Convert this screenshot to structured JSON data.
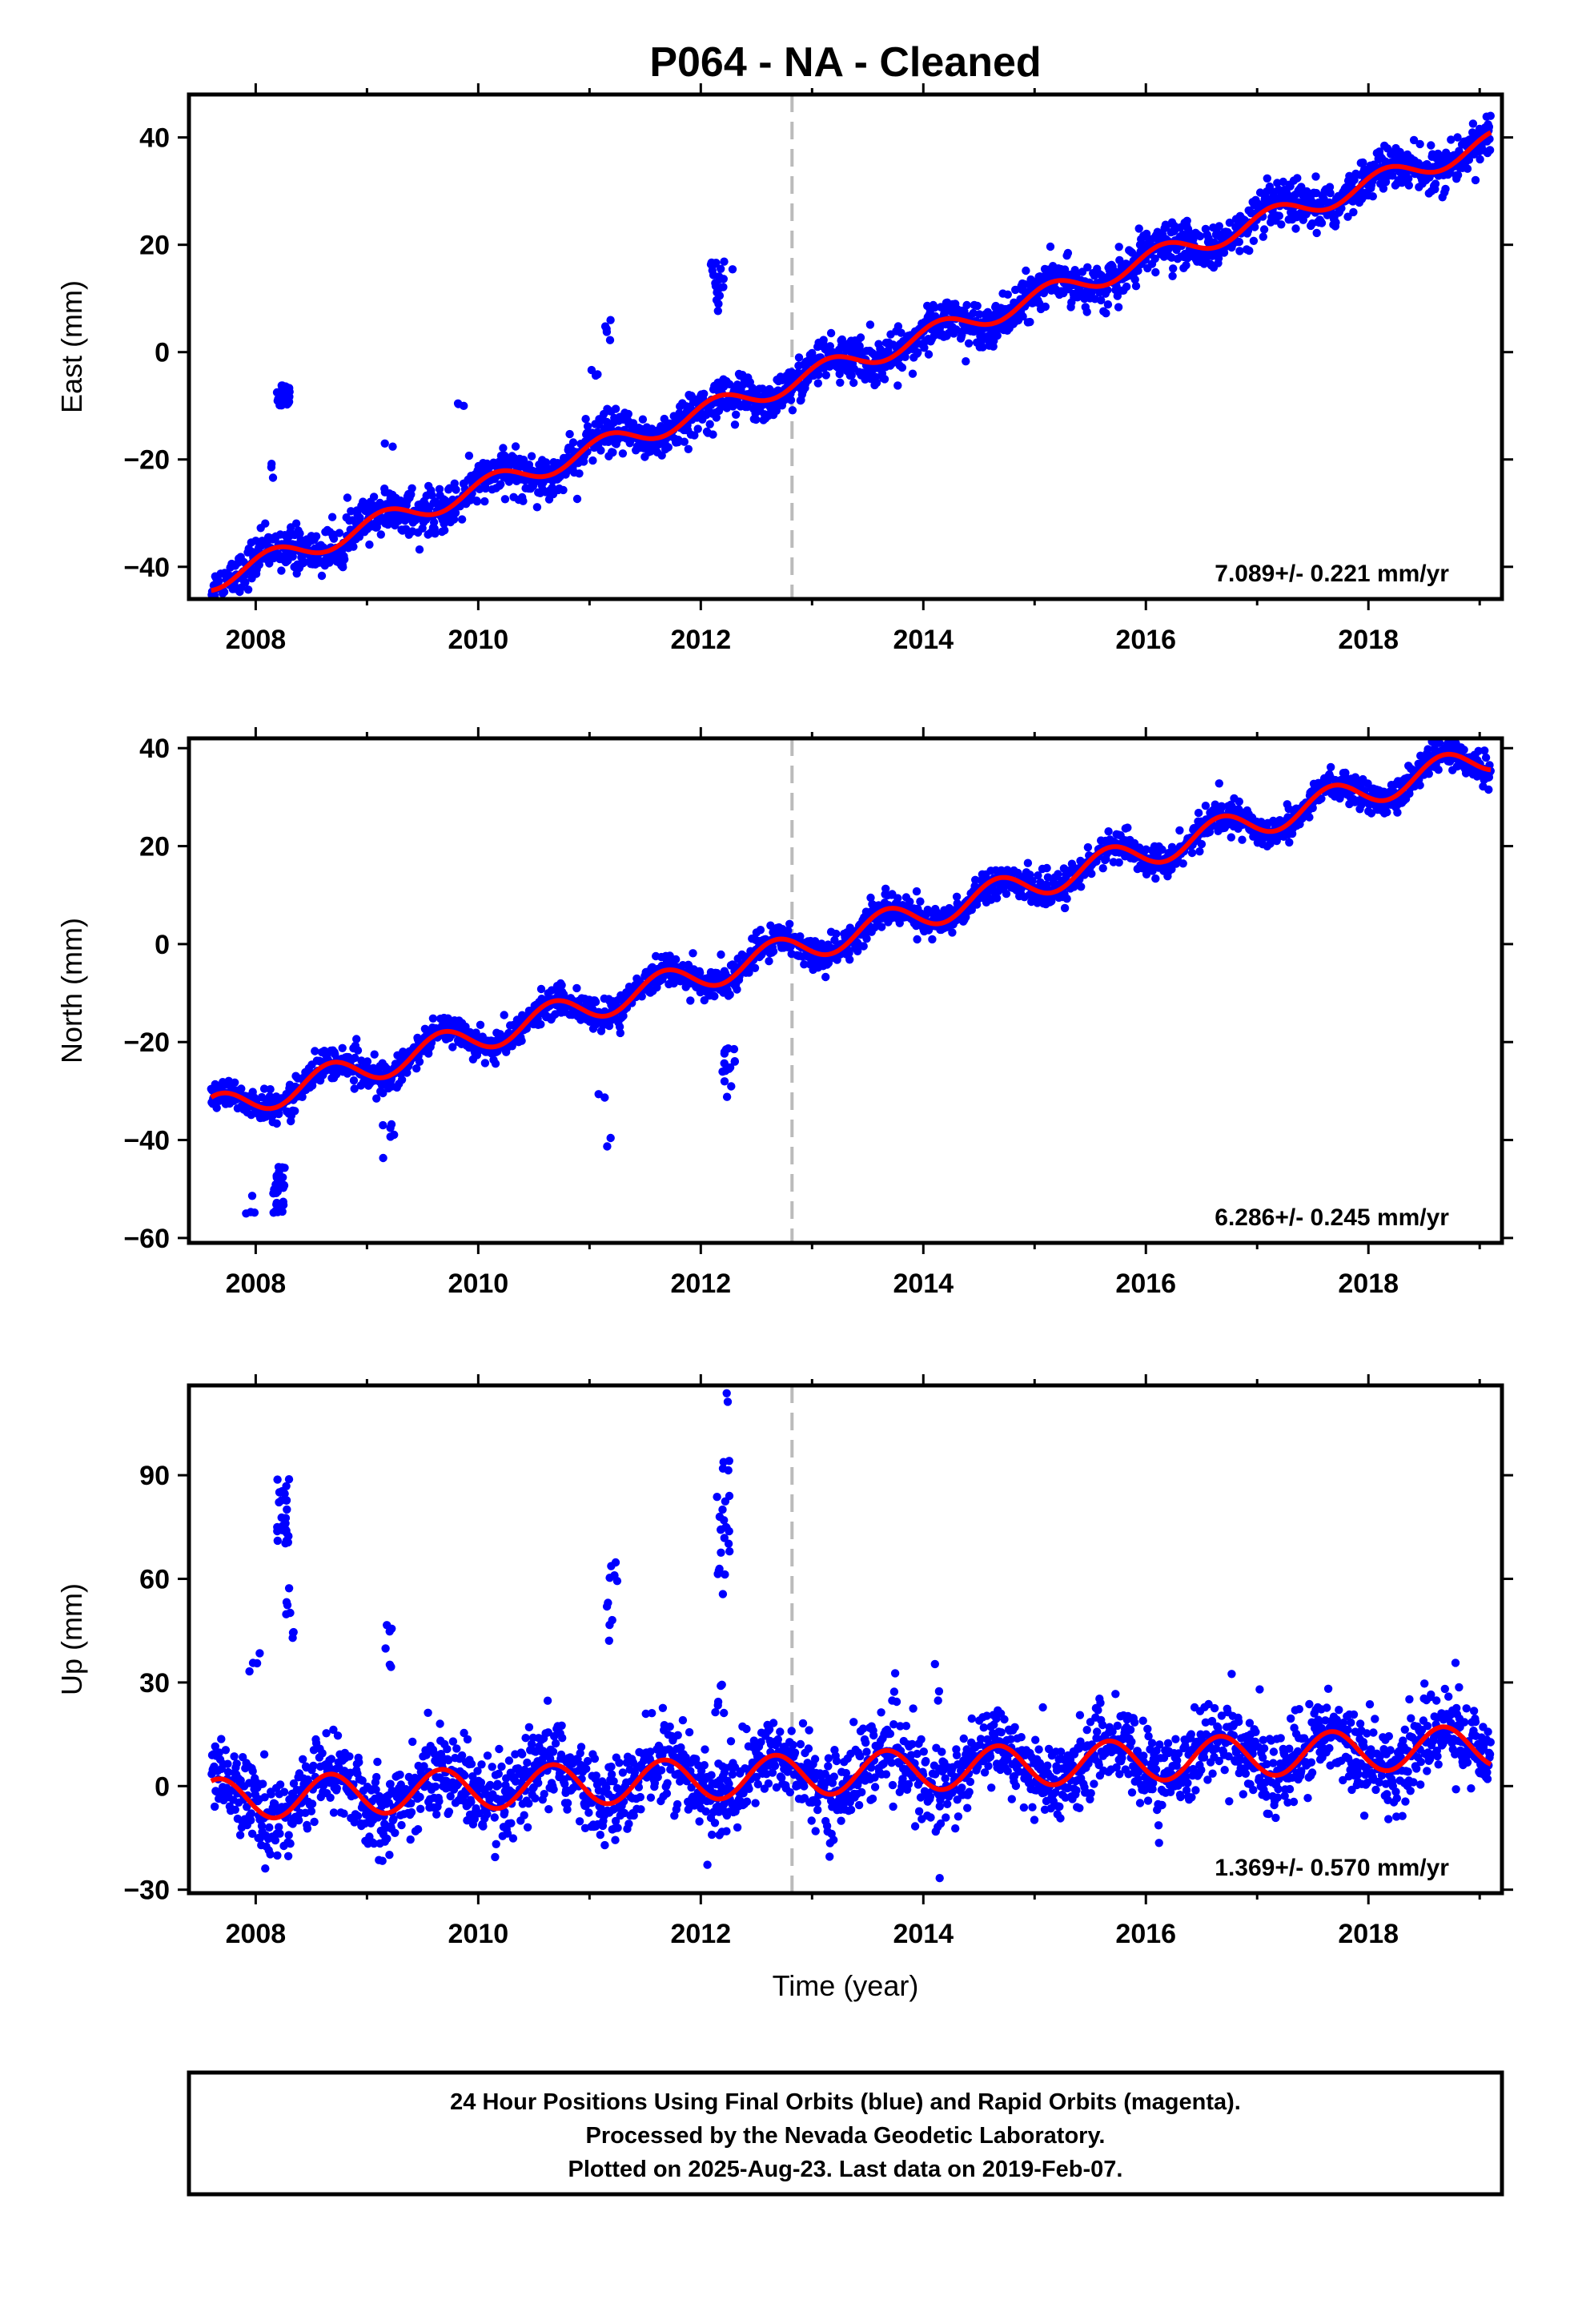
{
  "chart_data": {
    "type": "scatter",
    "title": "P064  - NA - Cleaned",
    "xlabel": "Time (year)",
    "xlim": [
      2007.4,
      2019.2
    ],
    "x_ticks": [
      2008,
      2010,
      2012,
      2014,
      2016,
      2018
    ],
    "x_tick_labels": [
      "2008",
      "2010",
      "2012",
      "2014",
      "2016",
      "2018"
    ],
    "equipment_change_year": 2012.82,
    "data_start": 2007.6,
    "data_end": 2019.1,
    "series_colors": {
      "final_orbits": "#0000ff",
      "model_fit": "#ff0000",
      "event_line": "#bbbbbb"
    },
    "panels": [
      {
        "ylabel": "East (mm)",
        "ylim": [
          -46,
          48
        ],
        "y_ticks": [
          -40,
          -20,
          0,
          20,
          40
        ],
        "y_tick_labels": [
          "−40",
          "−20",
          "0",
          "20",
          "40"
        ],
        "rate_label": "7.089+/- 0.221 mm/yr",
        "rate_mm_per_yr": 7.089,
        "rate_sigma": 0.221,
        "value_at_start": -42.5,
        "annual_amp": 2.0,
        "annual_phase_peak": 0.15,
        "noise_mm": 2.0,
        "outliers": [
          {
            "year": 2008.25,
            "y": -8.0,
            "spread": 2.0,
            "n": 40
          },
          {
            "year": 2008.15,
            "y": -22.0,
            "spread": 2.0,
            "n": 3
          },
          {
            "year": 2009.2,
            "y": -17.0,
            "spread": 1.0,
            "n": 2
          },
          {
            "year": 2009.85,
            "y": -10.0,
            "spread": 0.7,
            "n": 3
          },
          {
            "year": 2011.15,
            "y": 5.0,
            "spread": 3.0,
            "n": 5
          },
          {
            "year": 2011.05,
            "y": -5.0,
            "spread": 3.0,
            "n": 3
          },
          {
            "year": 2012.15,
            "y": 12.0,
            "spread": 5.0,
            "n": 22
          },
          {
            "year": 2012.3,
            "y": 15.5,
            "spread": 0.5,
            "n": 1
          },
          {
            "year": 2013.05,
            "y": 1.5,
            "spread": 0.5,
            "n": 2
          }
        ]
      },
      {
        "ylabel": "North (mm)",
        "ylim": [
          -61,
          42
        ],
        "y_ticks": [
          -60,
          -40,
          -20,
          0,
          20,
          40
        ],
        "y_tick_labels": [
          "−60",
          "−40",
          "−20",
          "0",
          "20",
          "40"
        ],
        "rate_label": "6.286+/- 0.245 mm/yr",
        "rate_mm_per_yr": 6.286,
        "rate_sigma": 0.245,
        "value_at_start": -34.0,
        "annual_amp": 3.0,
        "annual_phase_peak": 0.67,
        "noise_mm": 1.6,
        "outliers": [
          {
            "year": 2008.2,
            "y": -50.0,
            "spread": 5.0,
            "n": 30
          },
          {
            "year": 2007.95,
            "y": -53.0,
            "spread": 4.0,
            "n": 4
          },
          {
            "year": 2009.2,
            "y": -40.0,
            "spread": 4.0,
            "n": 6
          },
          {
            "year": 2010.0,
            "y": -16.0,
            "spread": 1.0,
            "n": 1
          },
          {
            "year": 2011.1,
            "y": -31.5,
            "spread": 1.0,
            "n": 2
          },
          {
            "year": 2011.2,
            "y": -40.5,
            "spread": 2.0,
            "n": 2
          },
          {
            "year": 2012.25,
            "y": -27.0,
            "spread": 6.0,
            "n": 16
          }
        ]
      },
      {
        "ylabel": "Up (mm)",
        "ylim": [
          -31,
          116
        ],
        "y_ticks": [
          -30,
          0,
          30,
          60,
          90
        ],
        "y_tick_labels": [
          "−30",
          "0",
          "30",
          "60",
          "90"
        ],
        "rate_label": "1.369+/- 0.570 mm/yr",
        "rate_mm_per_yr": 1.369,
        "rate_sigma": 0.57,
        "value_at_start": -4.0,
        "annual_amp": 6.0,
        "annual_phase_peak": 0.67,
        "noise_mm": 6.0,
        "outliers": [
          {
            "year": 2008.25,
            "y": 80.0,
            "spread": 10.0,
            "n": 28
          },
          {
            "year": 2008.3,
            "y": 50.0,
            "spread": 8.0,
            "n": 8
          },
          {
            "year": 2008.0,
            "y": 36.0,
            "spread": 4.0,
            "n": 4
          },
          {
            "year": 2009.2,
            "y": 40.0,
            "spread": 8.0,
            "n": 6
          },
          {
            "year": 2011.2,
            "y": 50.0,
            "spread": 15.0,
            "n": 10
          },
          {
            "year": 2012.2,
            "y": 75.0,
            "spread": 20.0,
            "n": 24
          },
          {
            "year": 2012.2,
            "y": 112.0,
            "spread": 2.0,
            "n": 2
          },
          {
            "year": 2012.18,
            "y": 25.0,
            "spread": 5.0,
            "n": 6
          },
          {
            "year": 2014.15,
            "y": 30.0,
            "spread": 6.0,
            "n": 3
          },
          {
            "year": 2014.15,
            "y": -27.0,
            "spread": 0.5,
            "n": 1
          }
        ]
      }
    ]
  },
  "footer": {
    "line1": "24 Hour Positions Using Final Orbits (blue) and Rapid Orbits (magenta).",
    "line2": "Processed by the Nevada Geodetic Laboratory.",
    "line3": "Plotted on 2025-Aug-23. Last data on 2019-Feb-07."
  }
}
